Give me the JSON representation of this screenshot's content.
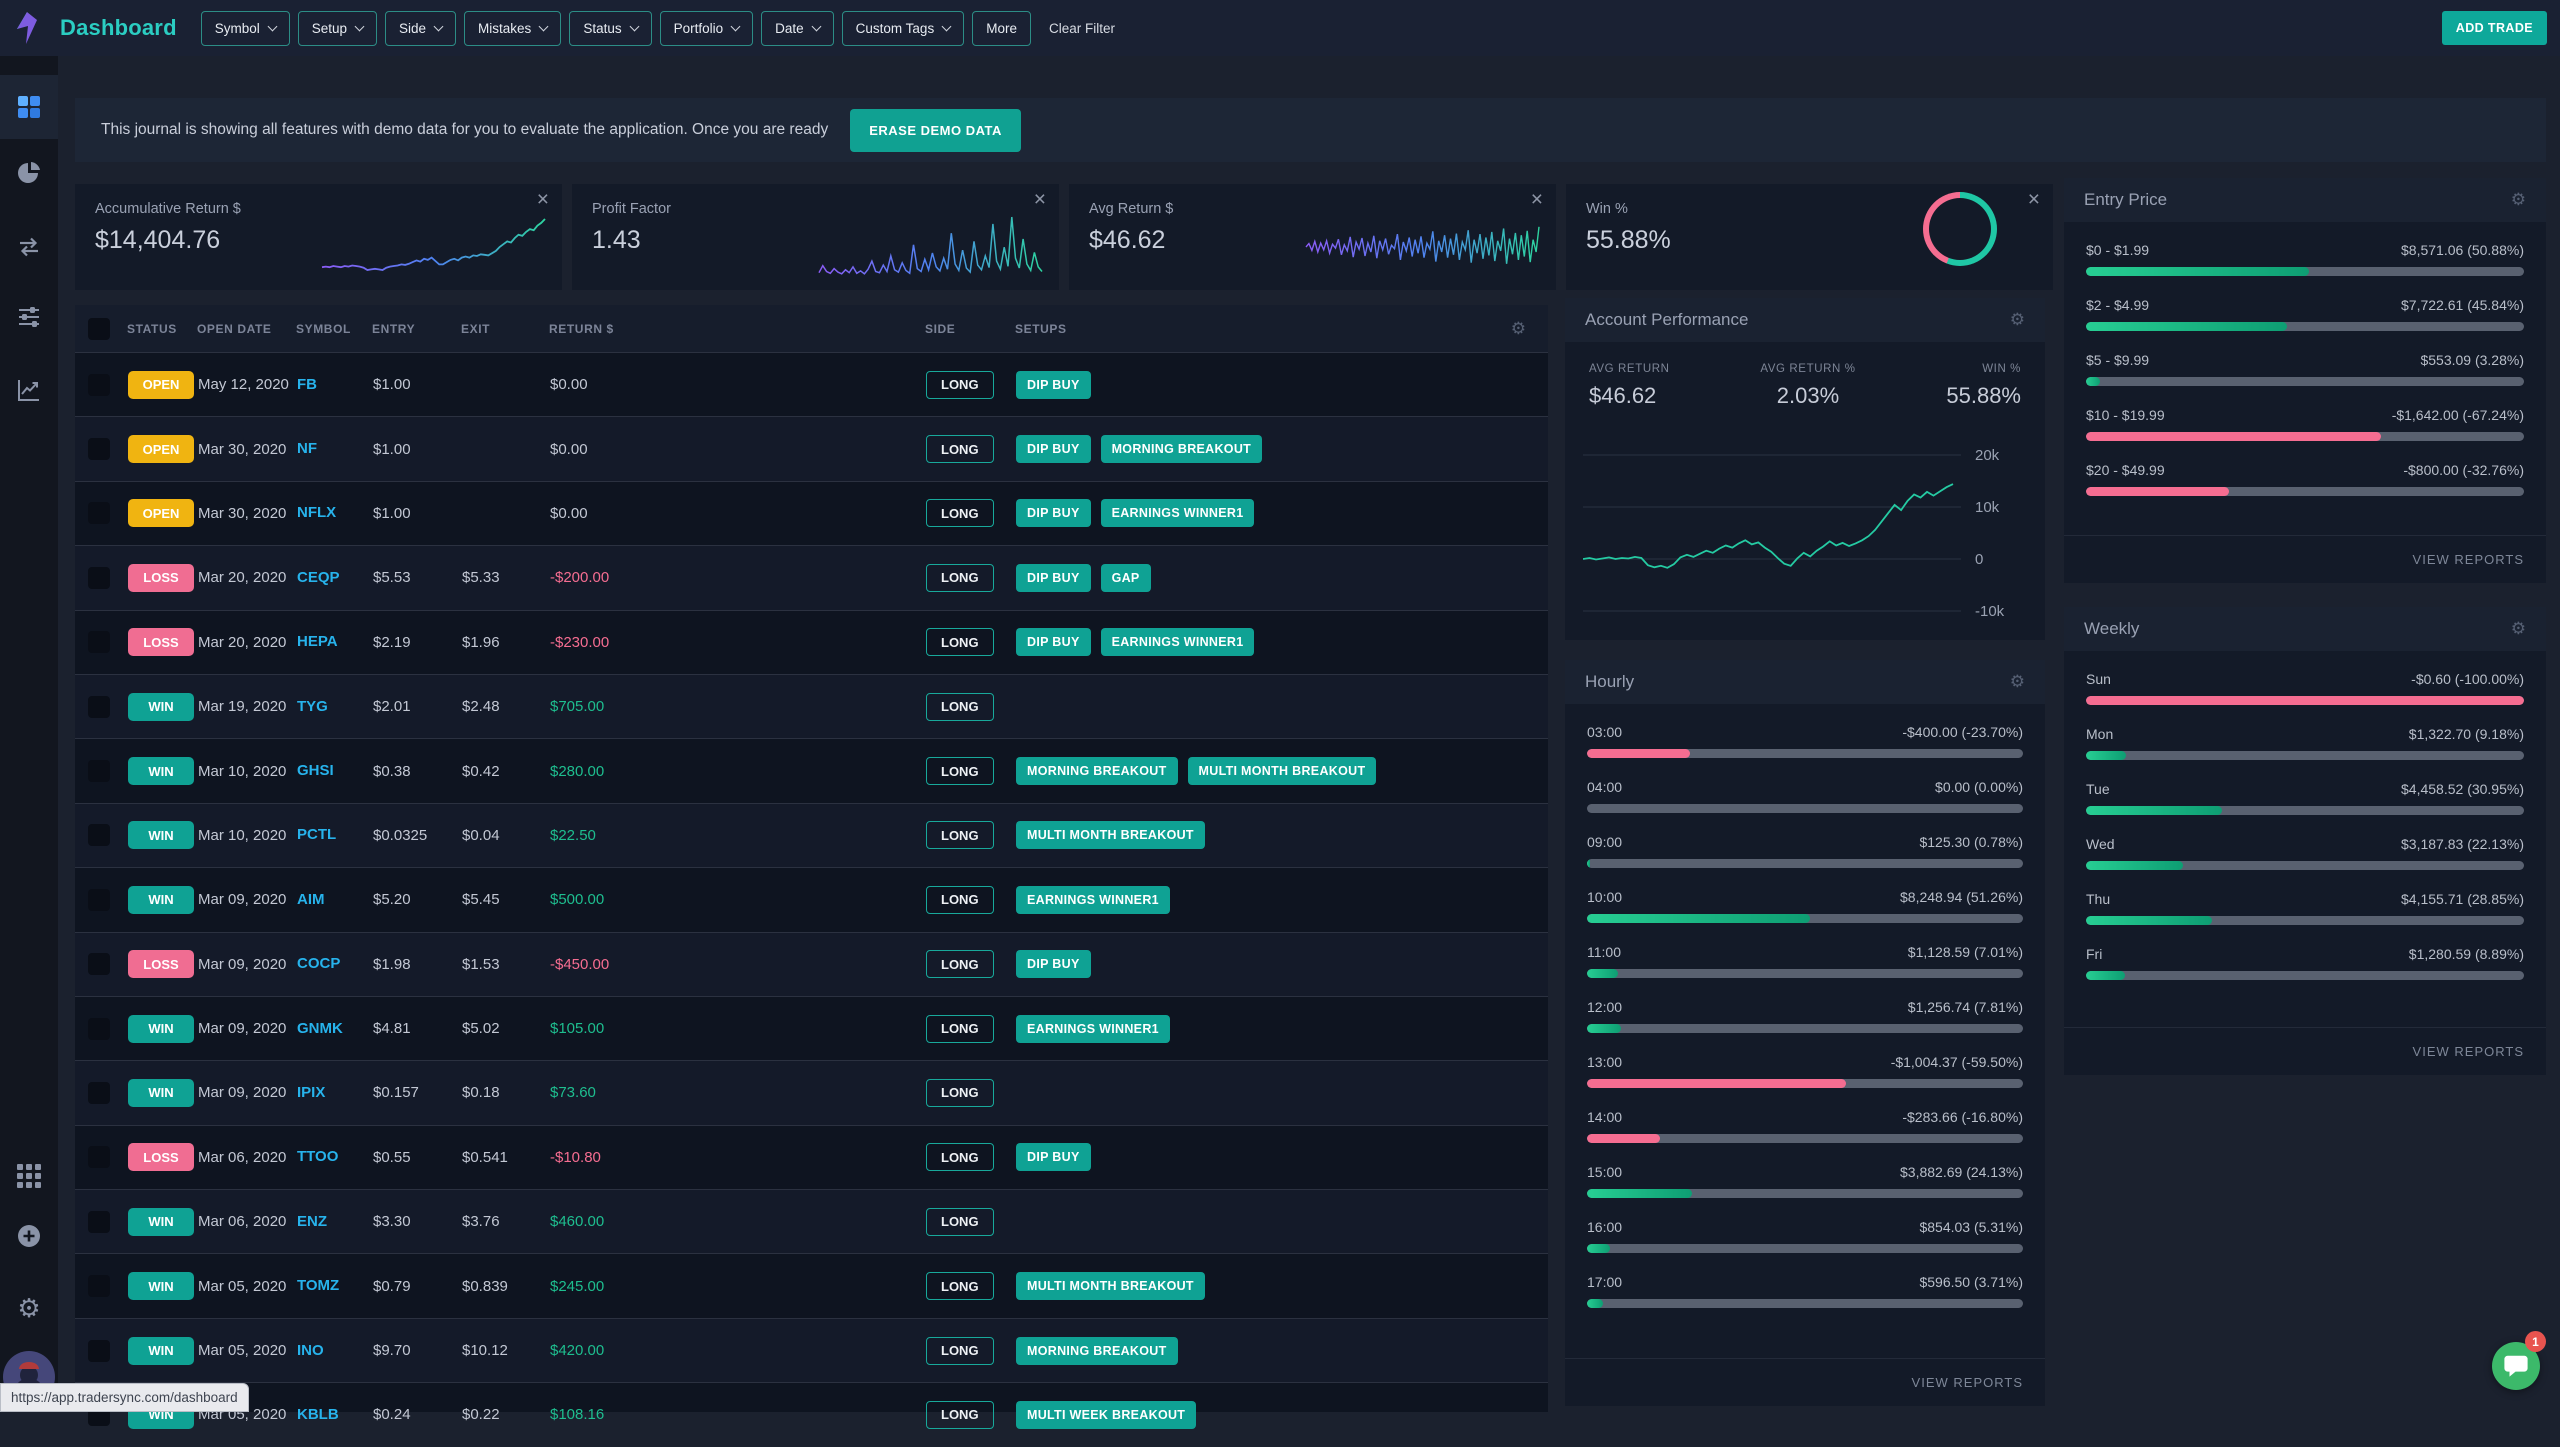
{
  "navbar": {
    "title": "Dashboard",
    "filters": [
      "Symbol",
      "Setup",
      "Side",
      "Mistakes",
      "Status",
      "Portfolio",
      "Date",
      "Custom Tags"
    ],
    "more_label": "More",
    "clear_filter_label": "Clear Filter",
    "add_trade_label": "ADD TRADE"
  },
  "banner": {
    "text": "This journal is showing all features with demo data for you to evaluate the application. Once you are ready",
    "button_label": "ERASE DEMO DATA"
  },
  "stat_cards": [
    {
      "label": "Accumulative Return $",
      "value": "$14,404.76"
    },
    {
      "label": "Profit Factor",
      "value": "1.43"
    },
    {
      "label": "Avg Return $",
      "value": "$46.62"
    },
    {
      "label": "Win %",
      "value": "55.88%"
    }
  ],
  "sparklines": {
    "win_pct": 55.88,
    "accumulative": [
      14,
      15,
      14,
      16,
      15,
      14,
      16,
      15,
      17,
      16,
      15,
      13,
      9,
      10,
      11,
      10,
      9,
      13,
      15,
      16,
      17,
      19,
      18,
      20,
      23,
      26,
      24,
      29,
      27,
      31,
      25,
      19,
      19,
      23,
      27,
      29,
      26,
      31,
      33,
      31,
      35,
      34,
      37,
      36,
      35,
      39,
      43,
      50,
      55,
      60,
      58,
      66,
      72,
      70,
      77,
      82,
      80,
      88,
      93,
      100
    ],
    "profit_factor": [
      4,
      16,
      6,
      3,
      11,
      5,
      2,
      9,
      4,
      14,
      3,
      7,
      2,
      10,
      24,
      6,
      4,
      17,
      6,
      33,
      9,
      5,
      21,
      8,
      3,
      52,
      11,
      6,
      27,
      9,
      38,
      14,
      7,
      29,
      10,
      72,
      19,
      8,
      43,
      12,
      5,
      58,
      17,
      9,
      33,
      13,
      88,
      24,
      10,
      48,
      15,
      100,
      29,
      12,
      62,
      19,
      8,
      39,
      14,
      6
    ],
    "avg_return": [
      50,
      56,
      44,
      60,
      41,
      57,
      45,
      61,
      39,
      55,
      48,
      64,
      36,
      54,
      43,
      68,
      32,
      59,
      46,
      66,
      34,
      57,
      41,
      70,
      30,
      61,
      45,
      65,
      37,
      53,
      47,
      73,
      27,
      59,
      43,
      67,
      33,
      63,
      39,
      69,
      31,
      57,
      46,
      78,
      24,
      61,
      41,
      71,
      31,
      65,
      36,
      74,
      27,
      59,
      45,
      80,
      22,
      63,
      39,
      73,
      29,
      67,
      35,
      77,
      25,
      61,
      43,
      83,
      20,
      65,
      37,
      75,
      27,
      71,
      33,
      79,
      23,
      63,
      41,
      86
    ]
  },
  "account_performance": {
    "title": "Account Performance",
    "stats": [
      {
        "label": "AVG RETURN",
        "value": "$46.62"
      },
      {
        "label": "AVG RETURN %",
        "value": "2.03%"
      },
      {
        "label": "WIN %",
        "value": "55.88%"
      }
    ],
    "y_ticks": [
      "20k",
      "10k",
      "0",
      "-10k"
    ],
    "series_k": [
      0,
      0.2,
      -0.1,
      0.1,
      0.3,
      0,
      0.2,
      0.1,
      0.4,
      0.2,
      -1.2,
      -1.6,
      -1.3,
      -1.7,
      -1.0,
      0.3,
      0.8,
      0.4,
      1.0,
      1.6,
      1.2,
      2.0,
      2.6,
      2.2,
      3.0,
      3.6,
      2.8,
      3.2,
      2.2,
      1.4,
      0.2,
      -0.9,
      -1.3,
      0.1,
      1.2,
      0.5,
      1.6,
      2.4,
      3.4,
      2.6,
      3.1,
      2.5,
      3.0,
      3.6,
      4.4,
      5.6,
      7.2,
      8.8,
      10.4,
      9.4,
      11.2,
      12.4,
      11.8,
      12.9,
      12.2,
      13.0,
      13.8,
      14.4
    ]
  },
  "hourly": {
    "title": "Hourly",
    "rows": [
      {
        "label": "03:00",
        "value": "-$400.00 (-23.70%)",
        "pct": 23.7
      },
      {
        "label": "04:00",
        "value": "$0.00 (0.00%)",
        "pct": 0
      },
      {
        "label": "09:00",
        "value": "$125.30 (0.78%)",
        "pct": 0.78
      },
      {
        "label": "10:00",
        "value": "$8,248.94 (51.26%)",
        "pct": 51.26
      },
      {
        "label": "11:00",
        "value": "$1,128.59 (7.01%)",
        "pct": 7.01
      },
      {
        "label": "12:00",
        "value": "$1,256.74 (7.81%)",
        "pct": 7.81
      },
      {
        "label": "13:00",
        "value": "-$1,004.37 (-59.50%)",
        "pct": 59.5
      },
      {
        "label": "14:00",
        "value": "-$283.66 (-16.80%)",
        "pct": 16.8
      },
      {
        "label": "15:00",
        "value": "$3,882.69 (24.13%)",
        "pct": 24.13
      },
      {
        "label": "16:00",
        "value": "$854.03 (5.31%)",
        "pct": 5.31
      },
      {
        "label": "17:00",
        "value": "$596.50 (3.71%)",
        "pct": 3.71
      }
    ],
    "view_reports_label": "VIEW REPORTS"
  },
  "entry_price": {
    "title": "Entry Price",
    "rows": [
      {
        "label": "$0 - $1.99",
        "value": "$8,571.06 (50.88%)",
        "pct": 50.88
      },
      {
        "label": "$2 - $4.99",
        "value": "$7,722.61 (45.84%)",
        "pct": 45.84
      },
      {
        "label": "$5 - $9.99",
        "value": "$553.09 (3.28%)",
        "pct": 3.28
      },
      {
        "label": "$10 - $19.99",
        "value": "-$1,642.00 (-67.24%)",
        "pct": 67.24
      },
      {
        "label": "$20 - $49.99",
        "value": "-$800.00 (-32.76%)",
        "pct": 32.76
      }
    ],
    "view_reports_label": "VIEW REPORTS"
  },
  "weekly": {
    "title": "Weekly",
    "rows": [
      {
        "label": "Sun",
        "value": "-$0.60 (-100.00%)",
        "pct": 100
      },
      {
        "label": "Mon",
        "value": "$1,322.70 (9.18%)",
        "pct": 9.18
      },
      {
        "label": "Tue",
        "value": "$4,458.52 (30.95%)",
        "pct": 30.95
      },
      {
        "label": "Wed",
        "value": "$3,187.83 (22.13%)",
        "pct": 22.13
      },
      {
        "label": "Thu",
        "value": "$4,155.71 (28.85%)",
        "pct": 28.85
      },
      {
        "label": "Fri",
        "value": "$1,280.59 (8.89%)",
        "pct": 8.89
      }
    ],
    "view_reports_label": "VIEW REPORTS"
  },
  "table": {
    "headers": [
      "STATUS",
      "OPEN DATE",
      "SYMBOL",
      "ENTRY",
      "EXIT",
      "RETURN $",
      "SIDE",
      "SETUPS"
    ],
    "rows": [
      {
        "status": "OPEN",
        "date": "May 12, 2020",
        "symbol": "FB",
        "entry": "$1.00",
        "exit": "",
        "return": "$0.00",
        "side": "LONG",
        "setups": [
          "DIP BUY"
        ]
      },
      {
        "status": "OPEN",
        "date": "Mar 30, 2020",
        "symbol": "NF",
        "entry": "$1.00",
        "exit": "",
        "return": "$0.00",
        "side": "LONG",
        "setups": [
          "DIP BUY",
          "MORNING BREAKOUT"
        ]
      },
      {
        "status": "OPEN",
        "date": "Mar 30, 2020",
        "symbol": "NFLX",
        "entry": "$1.00",
        "exit": "",
        "return": "$0.00",
        "side": "LONG",
        "setups": [
          "DIP BUY",
          "EARNINGS WINNER1"
        ]
      },
      {
        "status": "LOSS",
        "date": "Mar 20, 2020",
        "symbol": "CEQP",
        "entry": "$5.53",
        "exit": "$5.33",
        "return": "-$200.00",
        "side": "LONG",
        "setups": [
          "DIP BUY",
          "GAP"
        ]
      },
      {
        "status": "LOSS",
        "date": "Mar 20, 2020",
        "symbol": "HEPA",
        "entry": "$2.19",
        "exit": "$1.96",
        "return": "-$230.00",
        "side": "LONG",
        "setups": [
          "DIP BUY",
          "EARNINGS WINNER1"
        ]
      },
      {
        "status": "WIN",
        "date": "Mar 19, 2020",
        "symbol": "TYG",
        "entry": "$2.01",
        "exit": "$2.48",
        "return": "$705.00",
        "side": "LONG",
        "setups": []
      },
      {
        "status": "WIN",
        "date": "Mar 10, 2020",
        "symbol": "GHSI",
        "entry": "$0.38",
        "exit": "$0.42",
        "return": "$280.00",
        "side": "LONG",
        "setups": [
          "MORNING BREAKOUT",
          "MULTI MONTH BREAKOUT"
        ]
      },
      {
        "status": "WIN",
        "date": "Mar 10, 2020",
        "symbol": "PCTL",
        "entry": "$0.0325",
        "exit": "$0.04",
        "return": "$22.50",
        "side": "LONG",
        "setups": [
          "MULTI MONTH BREAKOUT"
        ]
      },
      {
        "status": "WIN",
        "date": "Mar 09, 2020",
        "symbol": "AIM",
        "entry": "$5.20",
        "exit": "$5.45",
        "return": "$500.00",
        "side": "LONG",
        "setups": [
          "EARNINGS WINNER1"
        ]
      },
      {
        "status": "LOSS",
        "date": "Mar 09, 2020",
        "symbol": "COCP",
        "entry": "$1.98",
        "exit": "$1.53",
        "return": "-$450.00",
        "side": "LONG",
        "setups": [
          "DIP BUY"
        ]
      },
      {
        "status": "WIN",
        "date": "Mar 09, 2020",
        "symbol": "GNMK",
        "entry": "$4.81",
        "exit": "$5.02",
        "return": "$105.00",
        "side": "LONG",
        "setups": [
          "EARNINGS WINNER1"
        ]
      },
      {
        "status": "WIN",
        "date": "Mar 09, 2020",
        "symbol": "IPIX",
        "entry": "$0.157",
        "exit": "$0.18",
        "return": "$73.60",
        "side": "LONG",
        "setups": []
      },
      {
        "status": "LOSS",
        "date": "Mar 06, 2020",
        "symbol": "TTOO",
        "entry": "$0.55",
        "exit": "$0.541",
        "return": "-$10.80",
        "side": "LONG",
        "setups": [
          "DIP BUY"
        ]
      },
      {
        "status": "WIN",
        "date": "Mar 06, 2020",
        "symbol": "ENZ",
        "entry": "$3.30",
        "exit": "$3.76",
        "return": "$460.00",
        "side": "LONG",
        "setups": []
      },
      {
        "status": "WIN",
        "date": "Mar 05, 2020",
        "symbol": "TOMZ",
        "entry": "$0.79",
        "exit": "$0.839",
        "return": "$245.00",
        "side": "LONG",
        "setups": [
          "MULTI MONTH BREAKOUT"
        ]
      },
      {
        "status": "WIN",
        "date": "Mar 05, 2020",
        "symbol": "INO",
        "entry": "$9.70",
        "exit": "$10.12",
        "return": "$420.00",
        "side": "LONG",
        "setups": [
          "MORNING BREAKOUT"
        ]
      },
      {
        "status": "WIN",
        "date": "Mar 05, 2020",
        "symbol": "KBLB",
        "entry": "$0.24",
        "exit": "$0.22",
        "return": "$108.16",
        "side": "LONG",
        "setups": [
          "MULTI WEEK BREAKOUT"
        ]
      }
    ]
  },
  "tooltip_url": "https://app.tradersync.com/dashboard",
  "chat_badge": "1"
}
